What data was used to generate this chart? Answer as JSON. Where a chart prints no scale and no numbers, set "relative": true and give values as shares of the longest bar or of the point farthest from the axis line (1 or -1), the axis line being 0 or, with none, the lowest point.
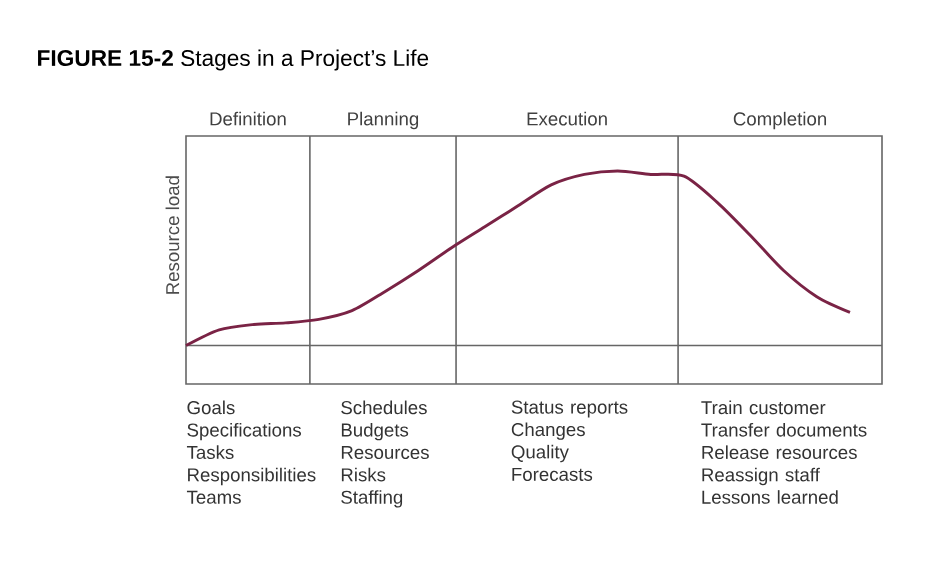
{
  "chart_data": {
    "type": "line",
    "relative": true,
    "title": "**FIGURE 15-2** Stages in a Project’s Life",
    "ylabel": "Resource load",
    "categories": [
      null,
      null,
      null,
      null,
      null,
      null,
      null,
      null,
      null,
      null,
      null,
      null,
      null,
      null,
      null,
      null,
      null,
      null,
      null,
      null,
      null
    ],
    "series": [
      {
        "color": "#7a2345",
        "values": [
          0,
          0.09,
          0.12,
          0.13,
          0.15,
          0.2,
          0.31,
          0.43,
          0.56,
          0.68,
          0.8,
          0.92,
          0.98,
          1,
          0.98,
          0.97,
          0.82,
          0.63,
          0.43,
          0.28,
          0.19
        ]
      }
    ],
    "annotations": [
      "Definition",
      "Planning",
      "Execution",
      "Completion",
      "Goals\nSpecifications\nTasks\nResponsibilities\nTeams",
      "Schedules\nBudgets\nResources\nRisks\nStaffing",
      "Status reports\nChanges\nQuality\nForecasts",
      "Train customer\nTransfer documents\nRelease resources\nReassign staff\nLessons learned"
    ]
  }
}
